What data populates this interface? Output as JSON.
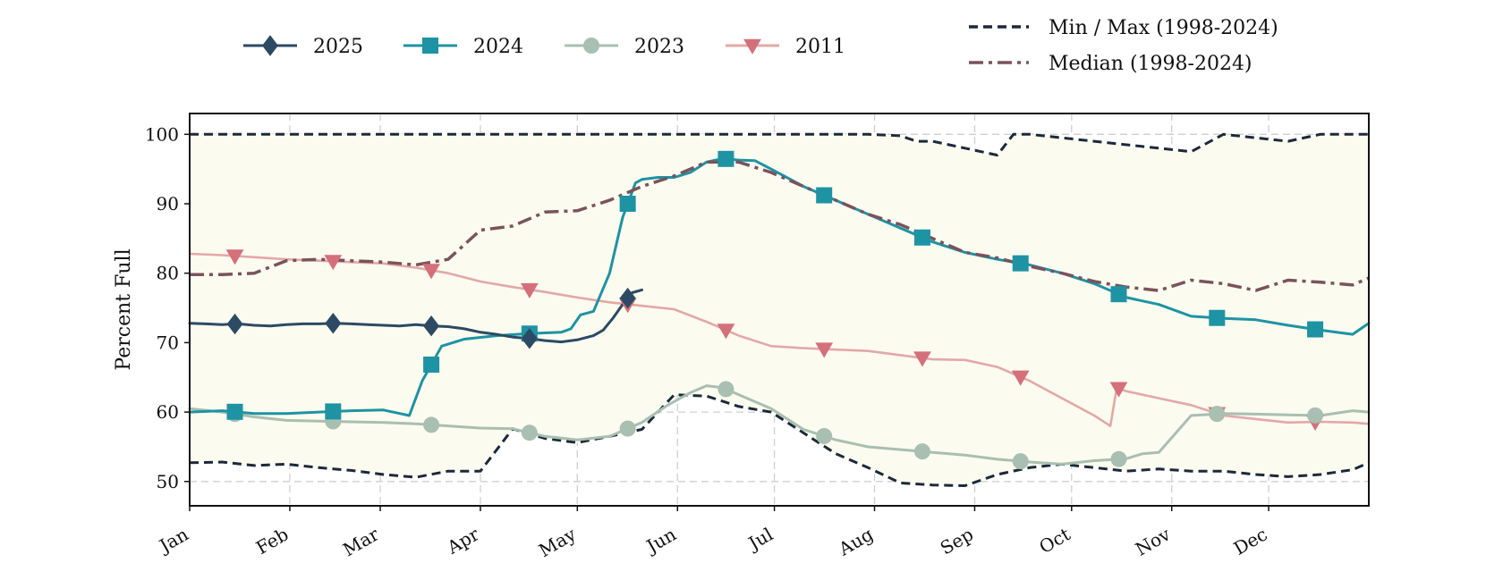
{
  "chart_data": {
    "type": "line",
    "ylabel": "Percent Full",
    "xlabel": "",
    "ylim": [
      46.5,
      103
    ],
    "yticks": [
      50,
      60,
      70,
      80,
      90,
      100
    ],
    "months": [
      "Jan",
      "Feb",
      "Mar",
      "Apr",
      "May",
      "Jun",
      "Jul",
      "Aug",
      "Sep",
      "Oct",
      "Nov",
      "Dec"
    ],
    "grid": true,
    "legend_position": "top",
    "background": "#fcfbf0",
    "series": [
      {
        "name": "Min / Max (1998-2024)",
        "role": "max",
        "color": "#1b2a3a",
        "style": "dashed",
        "x": [
          0,
          10,
          20,
          30,
          40,
          50,
          60,
          70,
          80,
          90,
          100,
          110,
          120,
          130,
          140,
          150,
          160,
          170,
          180,
          190,
          200,
          210,
          220,
          225,
          230,
          240,
          250,
          255,
          260,
          270,
          280,
          290,
          300,
          310,
          320,
          330,
          340,
          350,
          360,
          365
        ],
        "y": [
          100,
          100,
          100,
          100,
          100,
          100,
          100,
          100,
          100,
          100,
          100,
          100,
          100,
          100,
          100,
          100,
          100,
          100,
          100,
          100,
          100,
          100,
          99.8,
          99,
          99,
          98,
          97,
          100,
          100,
          99.5,
          99,
          98.5,
          98,
          97.5,
          100,
          99.5,
          99,
          100,
          100,
          100
        ]
      },
      {
        "name": "",
        "role": "min",
        "color": "#1b2a3a",
        "style": "dashed",
        "x": [
          0,
          10,
          20,
          30,
          40,
          50,
          60,
          70,
          80,
          90,
          100,
          110,
          120,
          130,
          140,
          150,
          160,
          170,
          180,
          190,
          200,
          210,
          220,
          230,
          240,
          250,
          260,
          270,
          280,
          290,
          300,
          310,
          320,
          330,
          340,
          350,
          360,
          365
        ],
        "y": [
          52.7,
          52.8,
          52.3,
          52.5,
          52,
          51.6,
          51,
          50.6,
          51.5,
          51.5,
          57.6,
          56.2,
          55.6,
          56.5,
          57.5,
          62.5,
          62.3,
          60.8,
          60,
          57,
          54,
          52,
          49.8,
          49.5,
          49.4,
          51,
          52,
          52.5,
          52,
          51.5,
          51.8,
          51.5,
          51.5,
          51,
          50.7,
          51,
          51.7,
          52.7
        ]
      },
      {
        "name": "Median (1998-2024)",
        "role": "median",
        "color": "#7a535c",
        "style": "dashdot",
        "x": [
          0,
          10,
          20,
          30,
          40,
          50,
          60,
          70,
          80,
          90,
          100,
          110,
          120,
          130,
          140,
          150,
          160,
          170,
          180,
          190,
          200,
          210,
          220,
          230,
          240,
          250,
          260,
          270,
          280,
          290,
          300,
          310,
          320,
          330,
          340,
          350,
          360,
          365
        ],
        "y": [
          79.8,
          79.8,
          80,
          81.8,
          82,
          81.8,
          81.6,
          81.2,
          82,
          86.2,
          86.8,
          88.8,
          89,
          90.5,
          92.5,
          94,
          96,
          96,
          94.5,
          92.5,
          90.5,
          88.5,
          87,
          85,
          83,
          82.2,
          81,
          80,
          78.8,
          78,
          77.5,
          79,
          78.5,
          77.5,
          79,
          78.7,
          78.3,
          79.3
        ]
      },
      {
        "name": "2011",
        "role": "year",
        "color": "#e3a8a6",
        "marker": "triangle-down",
        "markerColor": "#d4707a",
        "x": [
          0,
          10,
          20,
          30,
          40,
          50,
          60,
          70,
          80,
          90,
          100,
          110,
          120,
          130,
          140,
          150,
          160,
          170,
          180,
          190,
          200,
          210,
          220,
          230,
          240,
          250,
          260,
          270,
          280,
          285,
          287,
          290,
          300,
          310,
          320,
          330,
          340,
          350,
          360,
          365
        ],
        "y": [
          82.8,
          82.6,
          82.3,
          82.0,
          81.8,
          81.6,
          81.4,
          80.8,
          80.0,
          78.8,
          78.0,
          77.3,
          76.5,
          75.8,
          75.3,
          74.8,
          73.0,
          71.0,
          69.5,
          69.2,
          69.0,
          68.8,
          68.2,
          67.6,
          67.5,
          66.5,
          64.5,
          62.0,
          59.5,
          58.0,
          63.5,
          63.0,
          62.0,
          61.0,
          59.5,
          59.0,
          58.5,
          58.6,
          58.5,
          58.3
        ]
      },
      {
        "name": "2023",
        "role": "year",
        "color": "#a8bfb1",
        "marker": "circle",
        "markerColor": "#a8bfb1",
        "x": [
          0,
          10,
          20,
          30,
          40,
          50,
          60,
          70,
          80,
          90,
          100,
          110,
          120,
          130,
          135,
          140,
          148,
          155,
          160,
          165,
          170,
          180,
          190,
          200,
          210,
          220,
          230,
          240,
          250,
          260,
          270,
          280,
          290,
          295,
          300,
          310,
          320,
          330,
          340,
          350,
          360,
          365
        ],
        "y": [
          60.5,
          60,
          59.3,
          58.8,
          58.7,
          58.6,
          58.5,
          58.3,
          58,
          57.7,
          57.6,
          56.5,
          56,
          56.5,
          57.5,
          58.5,
          61,
          62.8,
          63.8,
          63.5,
          62.5,
          60.5,
          57.5,
          56,
          55,
          54.6,
          54.2,
          53.8,
          53.2,
          52.8,
          52.5,
          53,
          53.3,
          54,
          54.2,
          59.5,
          59.8,
          59.7,
          59.6,
          59.5,
          60.2,
          60
        ]
      },
      {
        "name": "2024",
        "role": "year",
        "color": "#1e93a3",
        "marker": "square",
        "markerColor": "#1e93a3",
        "x": [
          0,
          10,
          20,
          30,
          40,
          50,
          60,
          65,
          68,
          72,
          78,
          85,
          95,
          105,
          115,
          118,
          121,
          125,
          130,
          134,
          138,
          140,
          145,
          150,
          155,
          160,
          165,
          170,
          175,
          180,
          190,
          200,
          210,
          220,
          230,
          240,
          250,
          260,
          270,
          280,
          290,
          300,
          310,
          320,
          330,
          340,
          350,
          360,
          365
        ],
        "y": [
          60,
          60.2,
          59.8,
          59.8,
          60,
          60.2,
          60.3,
          59.8,
          59.5,
          64.5,
          69.5,
          70.5,
          71,
          71.3,
          71.5,
          72,
          74,
          74.5,
          80,
          88,
          93,
          93.5,
          93.8,
          93.8,
          94.5,
          96,
          96.5,
          96.3,
          96.2,
          95,
          92.5,
          90.5,
          88.5,
          86.5,
          84.5,
          83,
          82,
          81.2,
          80,
          78.5,
          76.5,
          75.5,
          73.8,
          73.5,
          73.3,
          72.5,
          71.8,
          71.2,
          72.8
        ]
      },
      {
        "name": "2025",
        "role": "year",
        "color": "#2c4a63",
        "marker": "diamond",
        "markerColor": "#2c4a63",
        "x": [
          0,
          5,
          10,
          15,
          20,
          25,
          30,
          35,
          40,
          45,
          50,
          55,
          60,
          65,
          70,
          75,
          80,
          85,
          90,
          95,
          100,
          105,
          110,
          115,
          120,
          125,
          128,
          131,
          134,
          137,
          140
        ],
        "y": [
          72.8,
          72.7,
          72.6,
          72.7,
          72.5,
          72.4,
          72.6,
          72.7,
          72.7,
          72.8,
          72.7,
          72.6,
          72.5,
          72.4,
          72.6,
          72.4,
          72.3,
          72.0,
          71.5,
          71.2,
          70.8,
          70.6,
          70.3,
          70.1,
          70.4,
          71.0,
          71.8,
          73.5,
          75.5,
          77.2,
          77.6
        ]
      }
    ]
  }
}
